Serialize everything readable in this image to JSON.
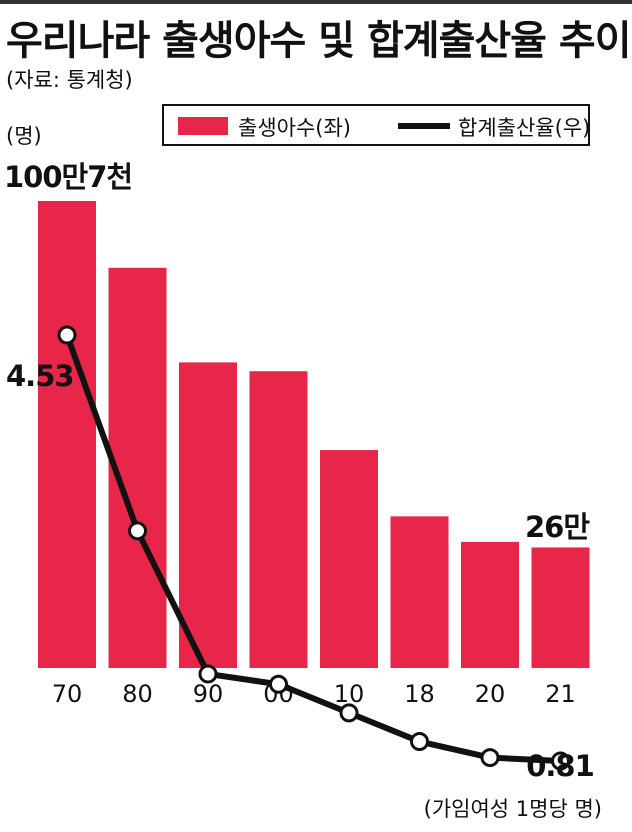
{
  "title": "우리나라 출생아수 및 합계출산율 추이",
  "source": "(자료: 통계청)",
  "unit_left": "(명)",
  "note": "(가임여성 1명당 명)",
  "legend": {
    "births": "출생아수(좌)",
    "fertility": "합계출산율(우)"
  },
  "colors": {
    "bar": "#e8264a",
    "line": "#111111"
  },
  "chart_data": {
    "type": "bar+line",
    "categories": [
      "70",
      "80",
      "90",
      "00",
      "10",
      "18",
      "20",
      "21"
    ],
    "series": [
      {
        "name": "출생아수(좌)",
        "type": "bar",
        "values": [
          1007000,
          863000,
          659000,
          640000,
          470000,
          327000,
          272000,
          260000
        ]
      },
      {
        "name": "합계출산율(우)",
        "type": "line",
        "values": [
          4.53,
          2.82,
          1.57,
          1.48,
          1.23,
          0.98,
          0.84,
          0.81
        ]
      }
    ],
    "annotations": {
      "first_bar": "100만7천",
      "last_bar": "26만",
      "first_point": "4.53",
      "last_point": "0.81"
    }
  }
}
